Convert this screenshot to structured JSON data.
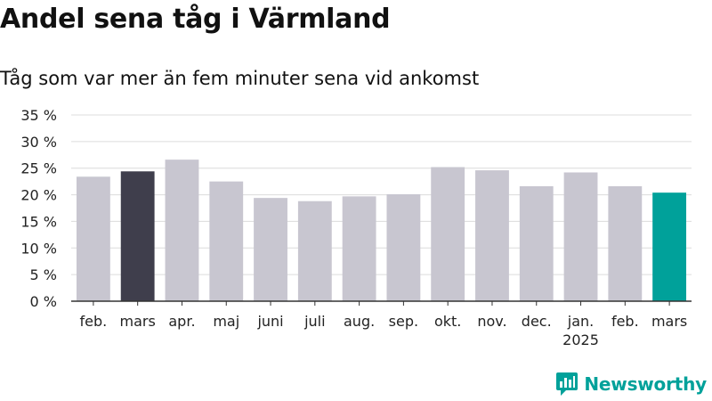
{
  "chart_data": {
    "type": "bar",
    "title": "Andel sena tåg i Värmland",
    "subtitle": "Tåg som var mer än fem minuter sena vid ankomst",
    "categories": [
      "feb.",
      "mars",
      "apr.",
      "maj",
      "juni",
      "juli",
      "aug.",
      "sep.",
      "okt.",
      "nov.",
      "dec.",
      "jan.",
      "feb.",
      "mars"
    ],
    "category_sublabels": [
      "",
      "",
      "",
      "",
      "",
      "",
      "",
      "",
      "",
      "",
      "",
      "2025",
      "",
      ""
    ],
    "values": [
      23.4,
      24.4,
      26.6,
      22.5,
      19.4,
      18.8,
      19.7,
      20.1,
      25.2,
      24.6,
      21.6,
      24.2,
      21.6,
      20.4
    ],
    "bar_colors": [
      "#c8c6d0",
      "#3f3e4c",
      "#c8c6d0",
      "#c8c6d0",
      "#c8c6d0",
      "#c8c6d0",
      "#c8c6d0",
      "#c8c6d0",
      "#c8c6d0",
      "#c8c6d0",
      "#c8c6d0",
      "#c8c6d0",
      "#c8c6d0",
      "#00a19a"
    ],
    "ylim": [
      0,
      35
    ],
    "yticks": [
      0,
      5,
      10,
      15,
      20,
      25,
      30,
      35
    ],
    "ytick_labels": [
      "0 %",
      "5 %",
      "10 %",
      "15 %",
      "20 %",
      "25 %",
      "30 %",
      "35 %"
    ],
    "grid": true,
    "xlabel": "",
    "ylabel": ""
  },
  "branding": {
    "name": "Newsworthy",
    "logo_icon": "newsworthy-chart-icon",
    "color": "#00a19a"
  }
}
